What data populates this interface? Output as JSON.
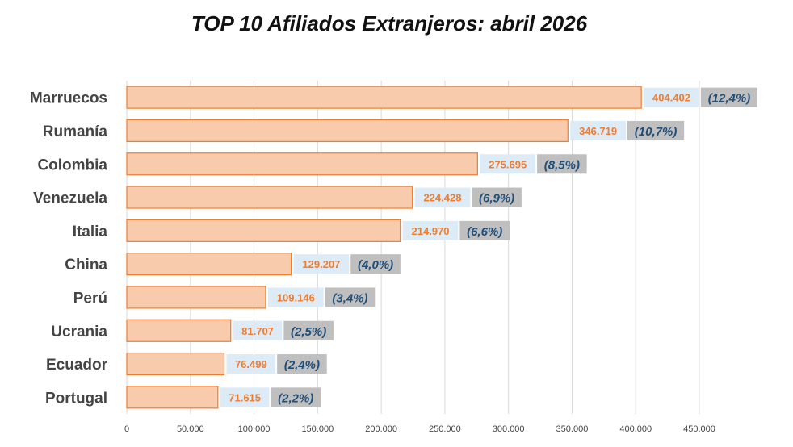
{
  "chart_data": {
    "type": "bar",
    "orientation": "horizontal",
    "title": "TOP 10 Afiliados Extranjeros: abril 2026",
    "xlabel": "",
    "ylabel": "",
    "xlim": [
      0,
      450000
    ],
    "grid": true,
    "legend": "none",
    "categories": [
      "Marruecos",
      "Rumanía",
      "Colombia",
      "Venezuela",
      "Italia",
      "China",
      "Perú",
      "Ucrania",
      "Ecuador",
      "Portugal"
    ],
    "values": [
      404402,
      346719,
      275695,
      224428,
      214970,
      129207,
      109146,
      81707,
      76499,
      71615
    ],
    "value_labels": [
      "404.402",
      "346.719",
      "275.695",
      "224.428",
      "214.970",
      "129.207",
      "109.146",
      "81.707",
      "76.499",
      "71.615"
    ],
    "percent_labels": [
      "(12,4%)",
      "(10,7%)",
      "(8,5%)",
      "(6,9%)",
      "(6,6%)",
      "(4,0%)",
      "(3,4%)",
      "(2,5%)",
      "(2,4%)",
      "(2,2%)"
    ],
    "ticks": [
      0,
      50000,
      100000,
      150000,
      200000,
      250000,
      300000,
      350000,
      400000,
      450000
    ],
    "tick_labels": [
      "0",
      "50.000",
      "100.000",
      "150.000",
      "200.000",
      "250.000",
      "300.000",
      "350.000",
      "400.000",
      "450.000"
    ],
    "colors": {
      "bar_fill": "#f8cbad",
      "bar_border": "#ed7d31",
      "value_text": "#ed7d31",
      "value_bg": "#ddebf7",
      "pct_text": "#1f4e79",
      "pct_bg": "#bfbfbf",
      "grid": "#d9d9d9"
    }
  }
}
